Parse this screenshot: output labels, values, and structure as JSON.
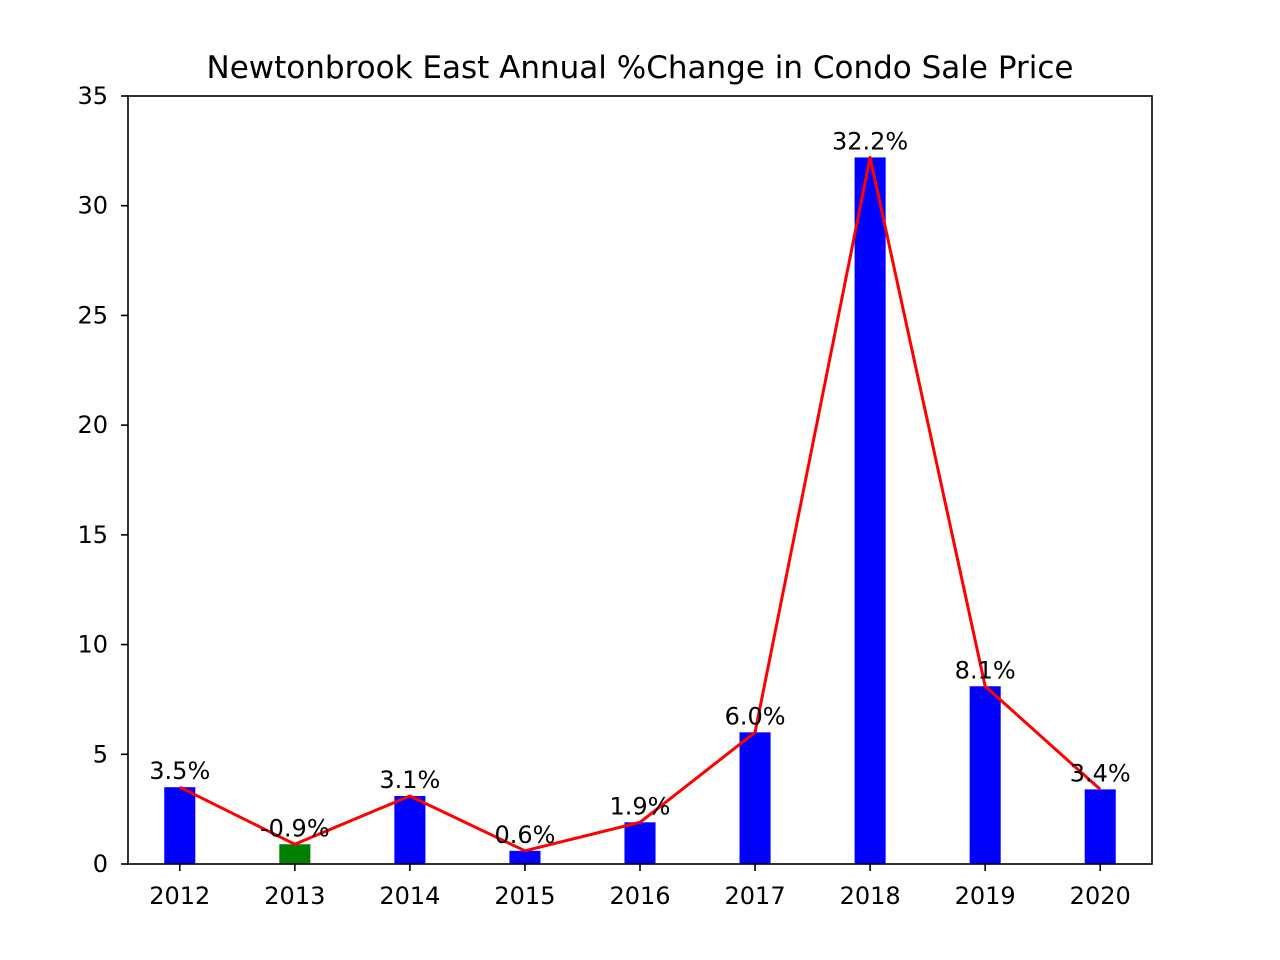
{
  "chart_data": {
    "type": "bar",
    "title": "Newtonbrook East Annual %Change in Condo Sale Price",
    "xlabel": "",
    "ylabel": "",
    "categories": [
      "2012",
      "2013",
      "2014",
      "2015",
      "2016",
      "2017",
      "2018",
      "2019",
      "2020"
    ],
    "values": [
      3.5,
      0.9,
      3.1,
      0.6,
      1.9,
      6.0,
      32.2,
      8.1,
      3.4
    ],
    "value_labels": [
      "3.5%",
      "-0.9%",
      "3.1%",
      "0.6%",
      "1.9%",
      "6.0%",
      "32.2%",
      "8.1%",
      "3.4%"
    ],
    "bar_colors": [
      "#0000ff",
      "#008000",
      "#0000ff",
      "#0000ff",
      "#0000ff",
      "#0000ff",
      "#0000ff",
      "#0000ff",
      "#0000ff"
    ],
    "line_color": "#ff0000",
    "ylim": [
      0,
      35
    ],
    "yticks": [
      0,
      5,
      10,
      15,
      20,
      25,
      30,
      35
    ],
    "grid": false,
    "legend": "none",
    "overlay": "line through bar tops"
  }
}
